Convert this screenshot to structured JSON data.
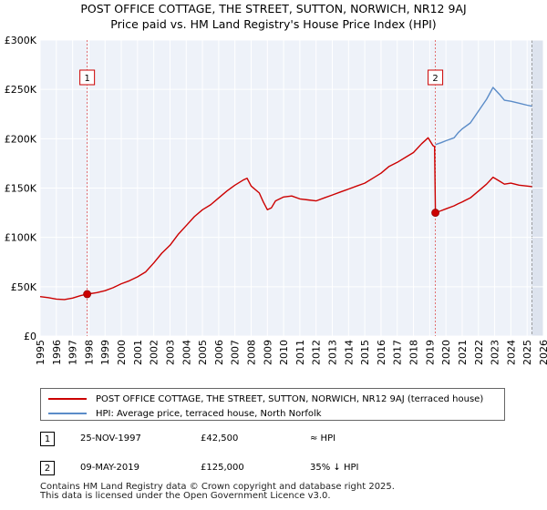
{
  "chart_data": {
    "type": "line",
    "title": "POST OFFICE COTTAGE, THE STREET, SUTTON, NORWICH, NR12 9AJ",
    "subtitle": "Price paid vs. HM Land Registry's House Price Index (HPI)",
    "xlim": [
      1995,
      2026
    ],
    "ylim": [
      0,
      300000
    ],
    "x_ticks": [
      "1995",
      "1996",
      "1997",
      "1998",
      "1999",
      "2000",
      "2001",
      "2002",
      "2003",
      "2004",
      "2005",
      "2006",
      "2007",
      "2008",
      "2009",
      "2010",
      "2011",
      "2012",
      "2013",
      "2014",
      "2015",
      "2016",
      "2017",
      "2018",
      "2019",
      "2020",
      "2021",
      "2022",
      "2023",
      "2024",
      "2025",
      "2026"
    ],
    "y_ticks": [
      {
        "value": 0,
        "label": "£0"
      },
      {
        "value": 50000,
        "label": "£50K"
      },
      {
        "value": 100000,
        "label": "£100K"
      },
      {
        "value": 150000,
        "label": "£150K"
      },
      {
        "value": 200000,
        "label": "£200K"
      },
      {
        "value": 250000,
        "label": "£250K"
      },
      {
        "value": 300000,
        "label": "£300K"
      }
    ],
    "grid": true,
    "series": [
      {
        "name": "POST OFFICE COTTAGE, THE STREET, SUTTON, NORWICH, NR12 9AJ (terraced house)",
        "color": "#cc0000",
        "points": [
          [
            1995.0,
            40000
          ],
          [
            1995.5,
            39000
          ],
          [
            1996.0,
            37500
          ],
          [
            1996.5,
            37000
          ],
          [
            1997.0,
            38500
          ],
          [
            1997.5,
            41000
          ],
          [
            1997.9,
            42500
          ],
          [
            1998.5,
            44000
          ],
          [
            1999.0,
            46000
          ],
          [
            1999.5,
            49000
          ],
          [
            2000.0,
            53000
          ],
          [
            2000.5,
            56000
          ],
          [
            2001.0,
            60000
          ],
          [
            2001.5,
            65000
          ],
          [
            2002.0,
            74000
          ],
          [
            2002.5,
            84000
          ],
          [
            2003.0,
            92000
          ],
          [
            2003.5,
            103000
          ],
          [
            2004.0,
            112000
          ],
          [
            2004.5,
            121000
          ],
          [
            2005.0,
            128000
          ],
          [
            2005.5,
            133000
          ],
          [
            2006.0,
            140000
          ],
          [
            2006.5,
            147000
          ],
          [
            2007.0,
            153000
          ],
          [
            2007.5,
            158000
          ],
          [
            2007.75,
            160000
          ],
          [
            2008.0,
            152000
          ],
          [
            2008.5,
            145000
          ],
          [
            2008.75,
            136000
          ],
          [
            2009.0,
            128000
          ],
          [
            2009.25,
            130000
          ],
          [
            2009.5,
            137000
          ],
          [
            2010.0,
            141000
          ],
          [
            2010.5,
            142000
          ],
          [
            2011.0,
            139000
          ],
          [
            2011.5,
            138000
          ],
          [
            2012.0,
            137000
          ],
          [
            2012.5,
            140000
          ],
          [
            2013.0,
            143000
          ],
          [
            2013.5,
            146000
          ],
          [
            2014.0,
            149000
          ],
          [
            2014.5,
            152000
          ],
          [
            2015.0,
            155000
          ],
          [
            2015.5,
            160000
          ],
          [
            2016.0,
            165000
          ],
          [
            2016.5,
            172000
          ],
          [
            2017.0,
            176000
          ],
          [
            2017.5,
            181000
          ],
          [
            2018.0,
            186000
          ],
          [
            2018.5,
            195000
          ],
          [
            2018.9,
            201000
          ],
          [
            2019.2,
            193000
          ],
          [
            2019.3,
            192000
          ],
          [
            2019.35,
            125000
          ],
          [
            2019.7,
            127000
          ],
          [
            2020.0,
            129000
          ],
          [
            2020.5,
            132000
          ],
          [
            2020.75,
            134000
          ],
          [
            2021.0,
            136000
          ],
          [
            2021.5,
            140000
          ],
          [
            2022.0,
            147000
          ],
          [
            2022.5,
            154000
          ],
          [
            2022.9,
            161000
          ],
          [
            2023.3,
            157000
          ],
          [
            2023.6,
            154000
          ],
          [
            2024.0,
            155000
          ],
          [
            2024.5,
            153000
          ],
          [
            2025.0,
            152000
          ],
          [
            2025.3,
            151500
          ]
        ]
      },
      {
        "name": "HPI: Average price, terraced house, North Norfolk",
        "color": "#5b8cc8",
        "points": [
          [
            2019.35,
            194000
          ],
          [
            2019.7,
            196000
          ],
          [
            2020.0,
            198000
          ],
          [
            2020.5,
            201000
          ],
          [
            2020.75,
            206000
          ],
          [
            2021.0,
            210000
          ],
          [
            2021.5,
            216000
          ],
          [
            2022.0,
            228000
          ],
          [
            2022.5,
            240000
          ],
          [
            2022.9,
            252000
          ],
          [
            2023.3,
            245000
          ],
          [
            2023.6,
            239000
          ],
          [
            2024.0,
            238000
          ],
          [
            2024.5,
            236000
          ],
          [
            2025.0,
            234000
          ],
          [
            2025.3,
            233000
          ]
        ]
      }
    ],
    "sales": [
      {
        "marker": "1",
        "date": "25-NOV-1997",
        "year": 1997.9,
        "price": 42500,
        "price_label": "£42,500",
        "hpi_text": "≈ HPI"
      },
      {
        "marker": "2",
        "date": "09-MAY-2019",
        "year": 2019.35,
        "price": 125000,
        "price_label": "£125,000",
        "hpi_text": "35% ↓ HPI"
      }
    ],
    "legend": [
      {
        "label": "POST OFFICE COTTAGE, THE STREET, SUTTON, NORWICH, NR12 9AJ (terraced house)",
        "color": "#cc0000"
      },
      {
        "label": "HPI: Average price, terraced house, North Norfolk",
        "color": "#5b8cc8"
      }
    ]
  },
  "footer": {
    "line1": "Contains HM Land Registry data © Crown copyright and database right 2025.",
    "line2": "This data is licensed under the Open Government Licence v3.0."
  }
}
